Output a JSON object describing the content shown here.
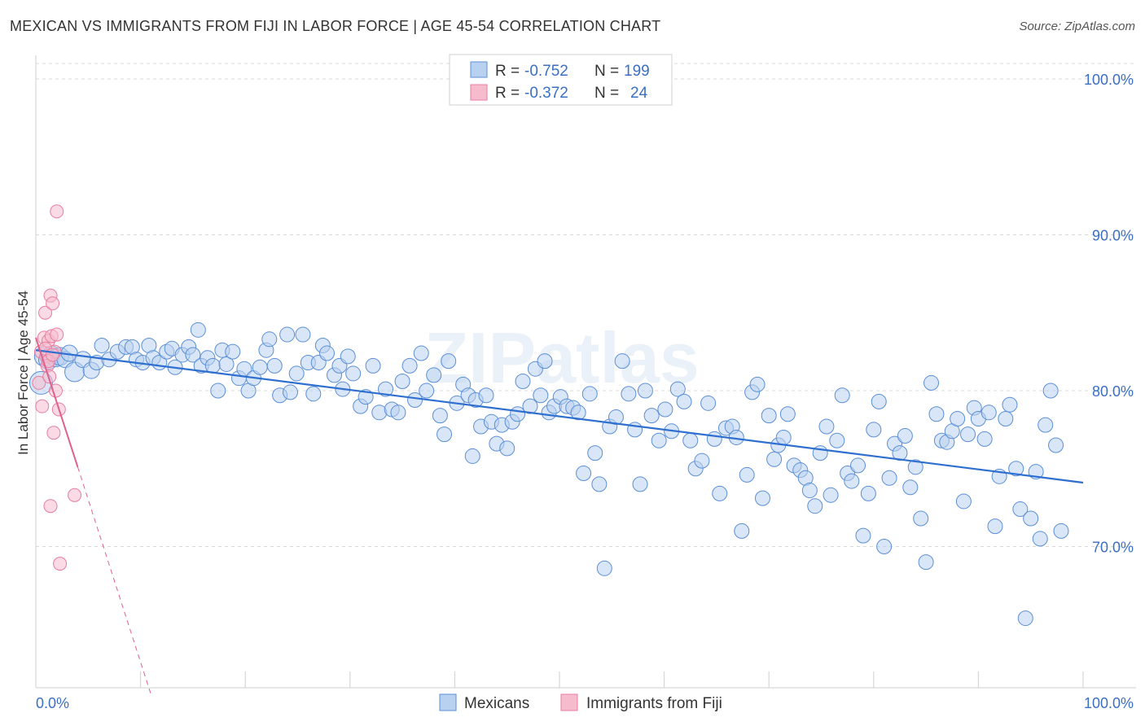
{
  "header": {
    "title": "MEXICAN VS IMMIGRANTS FROM FIJI IN LABOR FORCE | AGE 45-54 CORRELATION CHART",
    "source": "Source: ZipAtlas.com"
  },
  "colors": {
    "blue": "#5b8fd6",
    "blue_fill": "#b9d1f1",
    "blue_line": "#2f6fd0",
    "pink": "#e87da0",
    "pink_fill": "#f6bccd",
    "pink_line": "#e0608c",
    "axis_text": "#3a6fc4",
    "grid": "#d8d8d8"
  },
  "watermark": "ZIPatlas",
  "legend": {
    "rows": [
      {
        "r_label": "R =",
        "r_value": "-0.752",
        "n_label": "N =",
        "n_value": "199"
      },
      {
        "r_label": "R =",
        "r_value": "-0.372",
        "n_label": "N =",
        "n_value": "24"
      }
    ]
  },
  "bottom_legend": [
    "Mexicans",
    "Immigrants from Fiji"
  ],
  "chart_data": {
    "type": "scatter",
    "title": "MEXICAN VS IMMIGRANTS FROM FIJI IN LABOR FORCE | AGE 45-54 CORRELATION CHART",
    "xlabel": "",
    "ylabel": "In Labor Force | Age 45-54",
    "xlim": [
      0,
      100
    ],
    "ylim": [
      60.5,
      101.5
    ],
    "x_tick_labels": [
      "0.0%",
      "100.0%"
    ],
    "y_ticks": [
      70,
      80,
      90,
      100
    ],
    "y_tick_labels": [
      "70.0%",
      "80.0%",
      "90.0%",
      "100.0%"
    ],
    "grid": true,
    "legend_position": "top-center",
    "series": [
      {
        "name": "Mexicans",
        "R": -0.752,
        "N": 199,
        "trend": {
          "x": [
            0,
            100
          ],
          "y": [
            82.6,
            74.1
          ]
        },
        "points": [
          [
            0.5,
            80.5,
            14
          ],
          [
            0.8,
            82.2,
            12
          ],
          [
            1.2,
            82.0,
            12
          ],
          [
            1.5,
            82.3,
            11
          ],
          [
            1.9,
            82.1,
            11
          ],
          [
            2.3,
            82.2,
            11
          ],
          [
            2.8,
            82.0,
            10
          ],
          [
            3.2,
            82.4,
            10
          ],
          [
            3.7,
            81.2,
            12
          ],
          [
            4.5,
            82.0,
            10
          ],
          [
            5.3,
            81.3,
            10
          ],
          [
            5.8,
            81.8,
            9
          ],
          [
            6.3,
            82.9,
            9
          ],
          [
            7.0,
            82.0,
            9
          ],
          [
            7.8,
            82.5,
            9
          ],
          [
            8.6,
            82.8,
            9
          ],
          [
            9.2,
            82.8,
            9
          ],
          [
            9.6,
            82.0,
            9
          ],
          [
            10.2,
            81.8,
            9
          ],
          [
            10.8,
            82.9,
            9
          ],
          [
            11.2,
            82.1,
            9
          ],
          [
            11.8,
            81.8,
            9
          ],
          [
            12.5,
            82.5,
            9
          ],
          [
            13.0,
            82.7,
            9
          ],
          [
            13.3,
            81.5,
            9
          ],
          [
            14.0,
            82.3,
            9
          ],
          [
            14.6,
            82.8,
            9
          ],
          [
            15.0,
            82.3,
            9
          ],
          [
            15.5,
            83.9,
            9
          ],
          [
            15.8,
            81.6,
            9
          ],
          [
            16.4,
            82.1,
            9
          ],
          [
            16.9,
            81.6,
            9
          ],
          [
            17.4,
            80.0,
            9
          ],
          [
            17.8,
            82.6,
            9
          ],
          [
            18.2,
            81.7,
            9
          ],
          [
            18.8,
            82.5,
            9
          ],
          [
            19.4,
            80.8,
            9
          ],
          [
            19.9,
            81.4,
            9
          ],
          [
            20.3,
            80.0,
            9
          ],
          [
            20.8,
            80.8,
            9
          ],
          [
            21.4,
            81.5,
            9
          ],
          [
            22.0,
            82.6,
            9
          ],
          [
            22.3,
            83.3,
            9
          ],
          [
            22.8,
            81.6,
            9
          ],
          [
            23.3,
            79.7,
            9
          ],
          [
            24.0,
            83.6,
            9
          ],
          [
            24.3,
            79.9,
            9
          ],
          [
            24.9,
            81.1,
            9
          ],
          [
            25.5,
            83.6,
            9
          ],
          [
            26.0,
            81.8,
            9
          ],
          [
            26.5,
            79.8,
            9
          ],
          [
            27.0,
            81.8,
            9
          ],
          [
            27.4,
            82.9,
            9
          ],
          [
            27.8,
            82.4,
            9
          ],
          [
            28.5,
            81.0,
            9
          ],
          [
            29.0,
            81.6,
            9
          ],
          [
            29.3,
            80.1,
            9
          ],
          [
            29.8,
            82.2,
            9
          ],
          [
            30.3,
            81.1,
            9
          ],
          [
            31.0,
            79.0,
            9
          ],
          [
            31.5,
            79.6,
            9
          ],
          [
            32.2,
            81.6,
            9
          ],
          [
            32.8,
            78.6,
            9
          ],
          [
            33.4,
            80.1,
            9
          ],
          [
            34.0,
            78.8,
            9
          ],
          [
            34.6,
            78.6,
            9
          ],
          [
            35.0,
            80.6,
            9
          ],
          [
            35.7,
            81.6,
            9
          ],
          [
            36.2,
            79.4,
            9
          ],
          [
            36.8,
            82.4,
            9
          ],
          [
            37.3,
            80.0,
            9
          ],
          [
            38.0,
            81.0,
            9
          ],
          [
            38.6,
            78.4,
            9
          ],
          [
            39.0,
            77.2,
            9
          ],
          [
            39.4,
            81.9,
            9
          ],
          [
            40.2,
            79.2,
            9
          ],
          [
            40.8,
            80.4,
            9
          ],
          [
            41.3,
            79.7,
            9
          ],
          [
            41.7,
            75.8,
            9
          ],
          [
            42.0,
            79.4,
            9
          ],
          [
            42.5,
            77.7,
            9
          ],
          [
            43.0,
            79.7,
            9
          ],
          [
            43.5,
            78.0,
            9
          ],
          [
            44.0,
            76.6,
            9
          ],
          [
            44.5,
            77.8,
            9
          ],
          [
            45.0,
            76.3,
            9
          ],
          [
            45.5,
            78.0,
            9
          ],
          [
            46.0,
            78.5,
            9
          ],
          [
            46.5,
            80.6,
            9
          ],
          [
            47.2,
            79.0,
            9
          ],
          [
            47.7,
            81.4,
            9
          ],
          [
            48.2,
            79.7,
            9
          ],
          [
            48.6,
            81.9,
            9
          ],
          [
            49.0,
            78.6,
            9
          ],
          [
            49.5,
            79.0,
            9
          ],
          [
            50.1,
            79.6,
            9
          ],
          [
            50.7,
            79.0,
            9
          ],
          [
            51.3,
            78.9,
            9
          ],
          [
            51.8,
            78.6,
            9
          ],
          [
            52.3,
            74.7,
            9
          ],
          [
            52.9,
            79.8,
            9
          ],
          [
            53.4,
            76.0,
            9
          ],
          [
            53.8,
            74.0,
            9
          ],
          [
            54.3,
            68.6,
            9
          ],
          [
            54.8,
            77.7,
            9
          ],
          [
            55.4,
            78.3,
            9
          ],
          [
            56.0,
            81.9,
            9
          ],
          [
            56.6,
            79.8,
            9
          ],
          [
            57.2,
            77.5,
            9
          ],
          [
            57.7,
            74.0,
            9
          ],
          [
            58.2,
            80.0,
            9
          ],
          [
            58.8,
            78.4,
            9
          ],
          [
            59.5,
            76.8,
            9
          ],
          [
            60.1,
            78.8,
            9
          ],
          [
            60.7,
            77.4,
            9
          ],
          [
            61.3,
            80.1,
            9
          ],
          [
            61.9,
            79.3,
            9
          ],
          [
            62.5,
            76.8,
            9
          ],
          [
            63.0,
            75.0,
            9
          ],
          [
            63.6,
            75.5,
            9
          ],
          [
            64.2,
            79.2,
            9
          ],
          [
            64.8,
            76.9,
            9
          ],
          [
            65.3,
            73.4,
            9
          ],
          [
            65.9,
            77.6,
            9
          ],
          [
            66.5,
            77.7,
            9
          ],
          [
            66.9,
            77.0,
            9
          ],
          [
            67.4,
            71.0,
            9
          ],
          [
            67.9,
            74.6,
            9
          ],
          [
            68.4,
            79.9,
            9
          ],
          [
            68.9,
            80.4,
            9
          ],
          [
            69.4,
            73.1,
            9
          ],
          [
            70.0,
            78.4,
            9
          ],
          [
            70.5,
            75.6,
            9
          ],
          [
            70.9,
            76.5,
            9
          ],
          [
            71.4,
            77.0,
            9
          ],
          [
            71.8,
            78.5,
            9
          ],
          [
            72.4,
            75.2,
            9
          ],
          [
            73.0,
            74.9,
            9
          ],
          [
            73.5,
            74.4,
            9
          ],
          [
            73.9,
            73.6,
            9
          ],
          [
            74.4,
            72.6,
            9
          ],
          [
            74.9,
            76.0,
            9
          ],
          [
            75.5,
            77.7,
            9
          ],
          [
            75.9,
            73.3,
            9
          ],
          [
            76.5,
            76.8,
            9
          ],
          [
            77.0,
            79.7,
            9
          ],
          [
            77.5,
            74.7,
            9
          ],
          [
            77.9,
            74.2,
            9
          ],
          [
            78.5,
            75.2,
            9
          ],
          [
            79.0,
            70.7,
            9
          ],
          [
            79.5,
            73.4,
            9
          ],
          [
            80.0,
            77.5,
            9
          ],
          [
            80.5,
            79.3,
            9
          ],
          [
            81.0,
            70.0,
            9
          ],
          [
            81.5,
            74.4,
            9
          ],
          [
            82.0,
            76.6,
            9
          ],
          [
            82.5,
            76.0,
            9
          ],
          [
            83.0,
            77.1,
            9
          ],
          [
            83.5,
            73.8,
            9
          ],
          [
            84.0,
            75.1,
            9
          ],
          [
            84.5,
            71.8,
            9
          ],
          [
            85.0,
            69.0,
            9
          ],
          [
            85.5,
            80.5,
            9
          ],
          [
            86.0,
            78.5,
            9
          ],
          [
            86.5,
            76.8,
            9
          ],
          [
            87.0,
            76.7,
            9
          ],
          [
            87.5,
            77.4,
            9
          ],
          [
            88.0,
            78.2,
            9
          ],
          [
            88.6,
            72.9,
            9
          ],
          [
            89.0,
            77.2,
            9
          ],
          [
            89.6,
            78.9,
            9
          ],
          [
            90.0,
            78.2,
            9
          ],
          [
            90.6,
            76.9,
            9
          ],
          [
            91.0,
            78.6,
            9
          ],
          [
            91.6,
            71.3,
            9
          ],
          [
            92.0,
            74.5,
            9
          ],
          [
            92.6,
            78.2,
            9
          ],
          [
            93.0,
            79.1,
            9
          ],
          [
            93.6,
            75.0,
            9
          ],
          [
            94.0,
            72.4,
            9
          ],
          [
            94.5,
            65.4,
            9
          ],
          [
            95.0,
            71.8,
            9
          ],
          [
            95.5,
            74.8,
            9
          ],
          [
            95.9,
            70.5,
            9
          ],
          [
            96.4,
            77.8,
            9
          ],
          [
            96.9,
            80.0,
            9
          ],
          [
            97.4,
            76.5,
            9
          ],
          [
            97.9,
            71.0,
            9
          ]
        ]
      },
      {
        "name": "Immigrants from Fiji",
        "R": -0.372,
        "N": 24,
        "trend": {
          "x": [
            0,
            4.0
          ],
          "y": [
            83.4,
            75.1
          ]
        },
        "trend_extrapolated": {
          "x": [
            4.0,
            11.0
          ],
          "y": [
            75.1,
            60.5
          ]
        },
        "points": [
          [
            0.3,
            80.5,
            9
          ],
          [
            0.5,
            82.5,
            9
          ],
          [
            0.6,
            79.0,
            9
          ],
          [
            0.8,
            83.4,
            9
          ],
          [
            0.9,
            85.0,
            9
          ],
          [
            1.0,
            82.2,
            9
          ],
          [
            1.1,
            81.6,
            9
          ],
          [
            1.2,
            83.2,
            9
          ],
          [
            1.3,
            80.9,
            9
          ],
          [
            1.4,
            86.1,
            9
          ],
          [
            1.5,
            83.5,
            9
          ],
          [
            1.6,
            85.6,
            9
          ],
          [
            1.4,
            72.6,
            9
          ],
          [
            1.7,
            77.3,
            9
          ],
          [
            1.8,
            82.5,
            9
          ],
          [
            1.9,
            80.0,
            9
          ],
          [
            2.0,
            83.6,
            9
          ],
          [
            2.0,
            91.5,
            9
          ],
          [
            2.2,
            78.8,
            9
          ],
          [
            2.3,
            68.9,
            9
          ],
          [
            3.7,
            73.3,
            9
          ],
          [
            0.9,
            82.7,
            9
          ],
          [
            1.2,
            81.9,
            9
          ],
          [
            1.6,
            82.3,
            9
          ]
        ]
      }
    ]
  }
}
